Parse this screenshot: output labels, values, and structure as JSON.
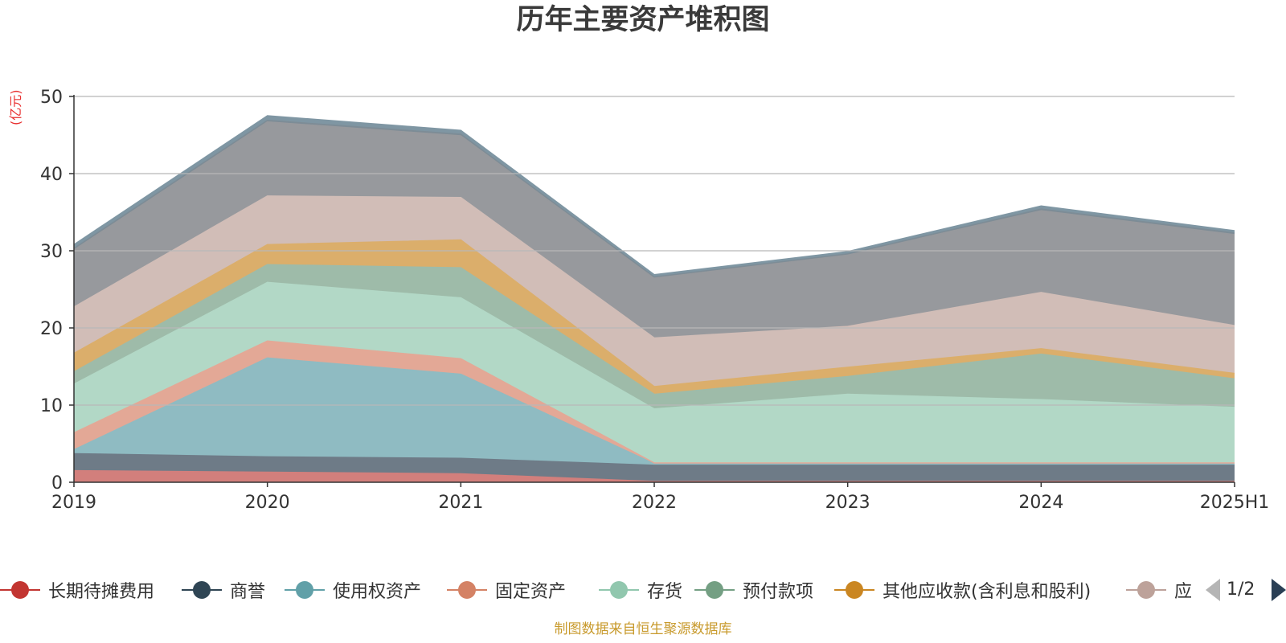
{
  "chart_data": {
    "type": "area",
    "title": "历年主要资产堆积图",
    "ylabel": "(亿元)",
    "x": [
      "2019",
      "2020",
      "2021",
      "2022",
      "2023",
      "2024",
      "2025H1"
    ],
    "ylim": [
      0,
      50
    ],
    "yticks": [
      0,
      10,
      20,
      30,
      40,
      50
    ],
    "grid": true,
    "stacked": true,
    "series": [
      {
        "name": "长期待摊费用",
        "color": "#c23531",
        "fill": "#d27f7c",
        "values": [
          1.5,
          1.3,
          1.1,
          0.1,
          0.1,
          0.1,
          0.1
        ]
      },
      {
        "name": "商誉",
        "color": "#2f4554",
        "fill": "#6e7b87",
        "values": [
          2.2,
          2.0,
          2.0,
          2.1,
          2.1,
          2.1,
          2.1
        ]
      },
      {
        "name": "使用权资产",
        "color": "#61a0a8",
        "fill": "#8fbbc2",
        "values": [
          0.5,
          12.8,
          10.9,
          0.2,
          0.2,
          0.2,
          0.2
        ]
      },
      {
        "name": "固定资产",
        "color": "#d48265",
        "fill": "#e3a896",
        "values": [
          2.2,
          2.2,
          2.0,
          0.1,
          0.1,
          0.1,
          0.1
        ]
      },
      {
        "name": "存货",
        "color": "#91c7ae",
        "fill": "#b2d8c6",
        "values": [
          6.3,
          7.6,
          7.9,
          7.0,
          8.9,
          8.2,
          7.2
        ]
      },
      {
        "name": "预付款项",
        "color": "#749f83",
        "fill": "#9ebba9",
        "values": [
          1.6,
          2.3,
          3.9,
          1.9,
          2.3,
          5.9,
          3.7
        ]
      },
      {
        "name": "其他应收款(含利息和股利)",
        "color": "#ca8622",
        "fill": "#dbae6b",
        "values": [
          2.4,
          2.6,
          3.6,
          1.0,
          1.2,
          0.7,
          0.7
        ]
      },
      {
        "name": "应",
        "color": "#bda29a",
        "fill": "#d1bdb7",
        "values": [
          6.0,
          6.3,
          5.5,
          6.3,
          5.3,
          7.3,
          6.2
        ]
      },
      {
        "name": "",
        "color": "#6e7074",
        "fill": "#97999d",
        "values": [
          7.4,
          9.6,
          8.0,
          7.8,
          9.3,
          10.6,
          11.8
        ]
      },
      {
        "name": "",
        "color": "#546570",
        "fill": "#7d8c96",
        "values": [
          0.2,
          0.2,
          0.2,
          0.1,
          0.1,
          0.2,
          0.2
        ]
      },
      {
        "name": "",
        "color": "#6f8a99",
        "fill": "#7f96a3",
        "values": [
          0.5,
          0.6,
          0.5,
          0.3,
          0.3,
          0.4,
          0.3
        ]
      }
    ]
  },
  "legend": {
    "items": [
      {
        "label": "长期待摊费用",
        "color": "#c23531"
      },
      {
        "label": "商誉",
        "color": "#2f4554"
      },
      {
        "label": "使用权资产",
        "color": "#61a0a8"
      },
      {
        "label": "固定资产",
        "color": "#d48265"
      },
      {
        "label": "存货",
        "color": "#91c7ae"
      },
      {
        "label": "预付款项",
        "color": "#749f83"
      },
      {
        "label": "其他应收款(含利息和股利)",
        "color": "#ca8622"
      },
      {
        "label": "应",
        "color": "#bda29a"
      }
    ],
    "page": "1/2"
  },
  "source": "制图数据来自恒生聚源数据库"
}
